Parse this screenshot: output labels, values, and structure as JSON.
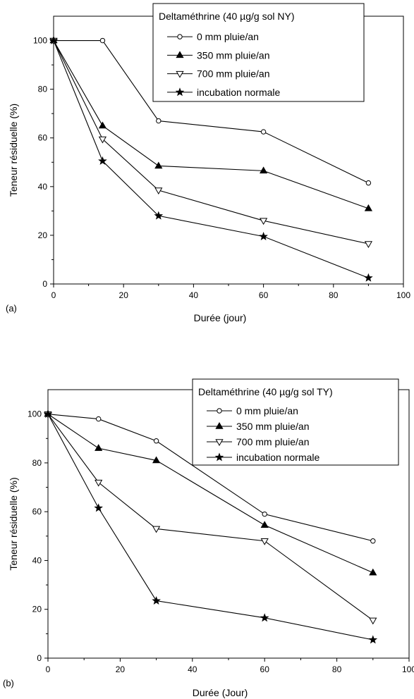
{
  "chart_data": [
    {
      "type": "line",
      "panel_label": "(a)",
      "xlabel": "Durée (jour)",
      "ylabel": "Teneur résiduelle (%)",
      "xlim": [
        0,
        100
      ],
      "ylim": [
        0,
        110
      ],
      "xticks": [
        "0",
        "20",
        "40",
        "60",
        "80",
        "100"
      ],
      "yticks": [
        "0",
        "20",
        "40",
        "60",
        "80",
        "100"
      ],
      "grid": false,
      "legend_title": "Deltaméthrine (40 µg/g sol NY)",
      "legend_position": "top-right",
      "x": [
        0,
        14,
        30,
        60,
        90
      ],
      "series": [
        {
          "name": "0 mm pluie/an",
          "marker": "circle-open",
          "values": [
            100,
            100,
            67,
            62.5,
            41.5
          ]
        },
        {
          "name": "350 mm pluie/an",
          "marker": "triangle-up-filled",
          "values": [
            100,
            65,
            48.5,
            46.5,
            31
          ]
        },
        {
          "name": "700 mm pluie/an",
          "marker": "triangle-down-open",
          "values": [
            100,
            59.5,
            38.5,
            26,
            16.5
          ]
        },
        {
          "name": "incubation normale",
          "marker": "star-filled",
          "values": [
            100,
            50.5,
            28,
            19.5,
            2.5
          ]
        }
      ]
    },
    {
      "type": "line",
      "panel_label": "(b)",
      "xlabel": "Durée (Jour)",
      "ylabel": "Teneur résiduelle (%)",
      "xlim": [
        0,
        100
      ],
      "ylim": [
        0,
        110
      ],
      "xticks": [
        "0",
        "20",
        "40",
        "60",
        "80",
        "100"
      ],
      "yticks": [
        "0",
        "20",
        "40",
        "60",
        "80",
        "100"
      ],
      "grid": false,
      "legend_title": "Deltaméthrine (40 µg/g sol TY)",
      "legend_position": "top-right",
      "x": [
        0,
        14,
        30,
        60,
        90
      ],
      "series": [
        {
          "name": "0 mm pluie/an",
          "marker": "circle-open",
          "values": [
            100,
            98,
            89,
            59,
            48
          ]
        },
        {
          "name": "350 mm pluie/an",
          "marker": "triangle-up-filled",
          "values": [
            100,
            86,
            81,
            54.5,
            35
          ]
        },
        {
          "name": "700 mm pluie/an",
          "marker": "triangle-down-open",
          "values": [
            100,
            72,
            53,
            48,
            15.5
          ]
        },
        {
          "name": "incubation normale",
          "marker": "star-filled",
          "values": [
            100,
            61.5,
            23.5,
            16.5,
            7.5
          ]
        }
      ]
    }
  ]
}
